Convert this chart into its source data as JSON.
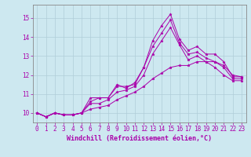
{
  "xlabel": "Windchill (Refroidissement éolien,°C)",
  "bg_color": "#cde8f0",
  "grid_color": "#b0cdd8",
  "line_color": "#aa00aa",
  "xlim": [
    -0.5,
    23.5
  ],
  "ylim": [
    9.5,
    15.7
  ],
  "yticks": [
    10,
    11,
    12,
    13,
    14,
    15
  ],
  "xticks": [
    0,
    1,
    2,
    3,
    4,
    5,
    6,
    7,
    8,
    9,
    10,
    11,
    12,
    13,
    14,
    15,
    16,
    17,
    18,
    19,
    20,
    21,
    22,
    23
  ],
  "lines": [
    [
      10.0,
      9.8,
      10.0,
      9.9,
      9.9,
      10.0,
      10.8,
      10.8,
      10.8,
      11.4,
      11.4,
      11.5,
      12.4,
      13.8,
      14.6,
      15.2,
      13.9,
      13.3,
      13.5,
      13.1,
      13.1,
      12.7,
      11.9,
      11.9
    ],
    [
      10.0,
      9.8,
      10.0,
      9.9,
      9.9,
      10.0,
      10.6,
      10.8,
      10.8,
      11.5,
      11.3,
      11.6,
      12.4,
      13.5,
      14.2,
      14.9,
      13.7,
      13.1,
      13.2,
      12.9,
      12.7,
      12.4,
      11.8,
      11.8
    ],
    [
      10.0,
      9.8,
      10.0,
      9.9,
      9.9,
      10.0,
      10.5,
      10.5,
      10.7,
      11.1,
      11.2,
      11.4,
      12.0,
      13.1,
      13.8,
      14.5,
      13.6,
      12.8,
      13.0,
      12.7,
      12.4,
      12.0,
      11.7,
      11.7
    ],
    [
      10.0,
      9.8,
      10.0,
      9.9,
      9.9,
      10.0,
      10.2,
      10.3,
      10.4,
      10.7,
      10.9,
      11.1,
      11.4,
      11.8,
      12.1,
      12.4,
      12.5,
      12.5,
      12.7,
      12.7,
      12.7,
      12.5,
      12.0,
      11.9
    ]
  ],
  "xlabel_fontsize": 6,
  "tick_fontsize": 5.5,
  "marker_size": 2.5,
  "linewidth": 0.7
}
